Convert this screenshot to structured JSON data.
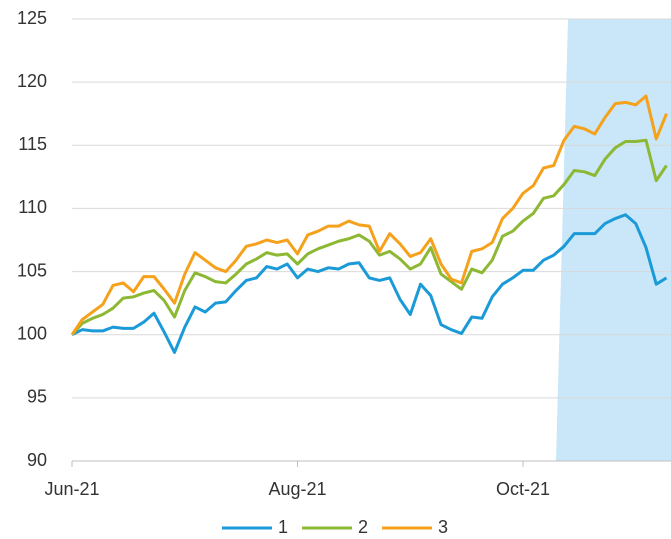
{
  "chart_data": {
    "type": "line",
    "categories": [
      "Jun-21",
      null,
      null,
      null,
      null,
      null,
      null,
      null,
      null,
      null,
      null,
      null,
      null,
      null,
      null,
      null,
      null,
      null,
      null,
      null,
      null,
      null,
      "Aug-21",
      null,
      null,
      null,
      null,
      null,
      null,
      null,
      null,
      null,
      null,
      null,
      null,
      null,
      null,
      null,
      null,
      null,
      null,
      null,
      null,
      null,
      "Oct-21",
      null,
      null,
      null,
      null,
      null,
      null,
      null,
      null,
      null,
      null,
      null,
      null,
      null,
      null
    ],
    "series": [
      {
        "name": "1",
        "color": "#1b9ad8",
        "values": [
          100,
          100.4,
          100.3,
          100.3,
          100.6,
          100.5,
          100.5,
          101,
          101.7,
          100.2,
          98.6,
          100.6,
          102.2,
          101.8,
          102.5,
          102.6,
          103.5,
          104.3,
          104.5,
          105.4,
          105.2,
          105.6,
          104.5,
          105.2,
          105,
          105.3,
          105.2,
          105.6,
          105.7,
          104.5,
          104.3,
          104.5,
          102.8,
          101.6,
          104,
          103.1,
          100.8,
          100.4,
          100.1,
          101.4,
          101.3,
          103,
          104,
          104.5,
          105.1,
          105.1,
          105.9,
          106.3,
          107,
          108,
          108,
          108,
          108.8,
          109.2,
          109.5,
          108.8,
          106.9,
          104,
          104.5
        ]
      },
      {
        "name": "2",
        "color": "#8db833",
        "values": [
          100,
          100.9,
          101.3,
          101.6,
          102.1,
          102.9,
          103,
          103.3,
          103.5,
          102.7,
          101.4,
          103.5,
          104.9,
          104.6,
          104.2,
          104.1,
          104.8,
          105.6,
          106,
          106.5,
          106.3,
          106.4,
          105.6,
          106.4,
          106.8,
          107.1,
          107.4,
          107.6,
          107.9,
          107.4,
          106.3,
          106.6,
          106,
          105.2,
          105.6,
          106.9,
          104.8,
          104.2,
          103.6,
          105.2,
          104.9,
          105.9,
          107.8,
          108.2,
          109,
          109.6,
          110.8,
          111,
          111.9,
          113,
          112.9,
          112.6,
          113.9,
          114.8,
          115.3,
          115.3,
          115.4,
          112.2,
          113.4
        ]
      },
      {
        "name": "3",
        "color": "#f5a11c",
        "values": [
          100,
          101.2,
          101.8,
          102.4,
          103.9,
          104.1,
          103.4,
          104.6,
          104.6,
          103.6,
          102.5,
          104.8,
          106.5,
          105.9,
          105.3,
          105,
          105.9,
          107,
          107.2,
          107.5,
          107.3,
          107.5,
          106.4,
          107.9,
          108.2,
          108.6,
          108.6,
          109,
          108.7,
          108.6,
          106.6,
          108,
          107.2,
          106.2,
          106.5,
          107.6,
          105.6,
          104.4,
          104.1,
          106.6,
          106.8,
          107.3,
          109.2,
          110,
          111.2,
          111.8,
          113.2,
          113.4,
          115.4,
          116.5,
          116.3,
          115.9,
          117.2,
          118.3,
          118.4,
          118.2,
          118.9,
          115.5,
          117.5
        ]
      }
    ],
    "ylim": [
      90,
      125
    ],
    "yticks": [
      90,
      95,
      100,
      105,
      110,
      115,
      120,
      125
    ],
    "grid": true,
    "legend": "bottom"
  }
}
